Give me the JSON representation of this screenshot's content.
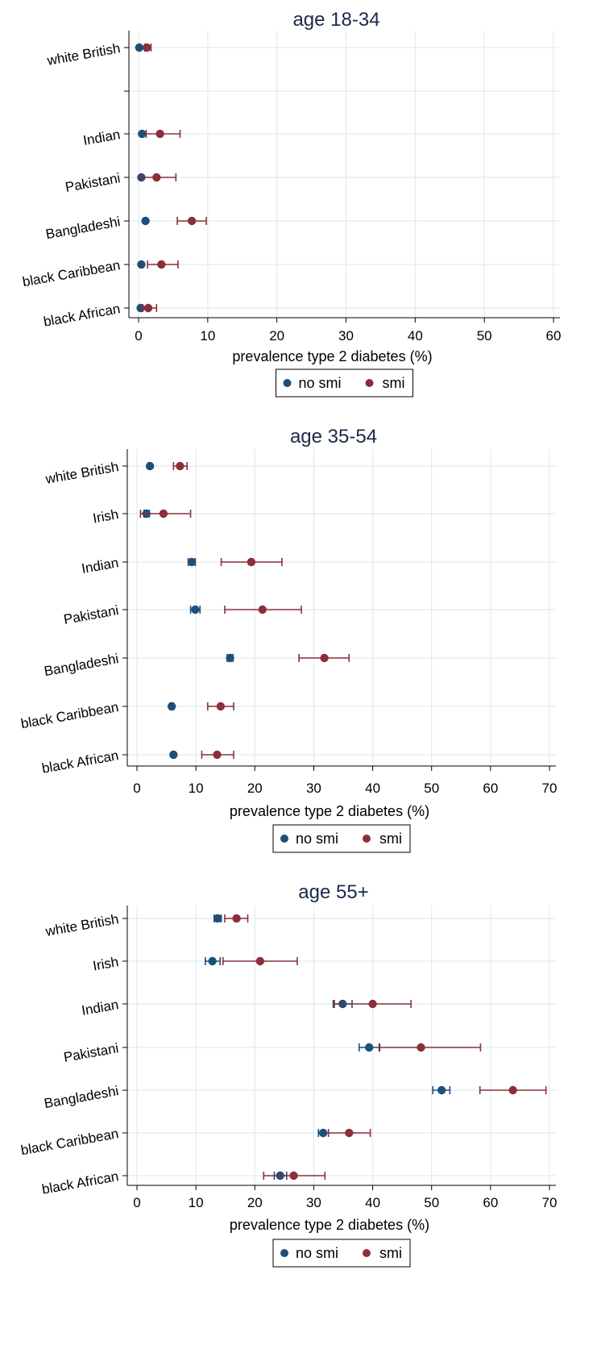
{
  "colors": {
    "no_smi": "#1f4e79",
    "smi": "#8b2f3a",
    "grid": "#e3ebef"
  },
  "chart_data": [
    {
      "type": "scatter",
      "title": "age 18-34",
      "xlabel": "prevalence type 2 diabetes (%)",
      "xlim": [
        0,
        60
      ],
      "xticks": [
        0,
        10,
        20,
        30,
        40,
        50,
        60
      ],
      "legend": [
        "no smi",
        "smi"
      ],
      "legend_position": "bottom",
      "categories": [
        "white British",
        "",
        "Indian",
        "Pakistani",
        "Bangladeshi",
        "black Caribbean",
        "black African"
      ],
      "series": [
        {
          "name": "no smi",
          "values": [
            0.1,
            null,
            0.5,
            0.4,
            1.0,
            0.4,
            0.3
          ],
          "ci_low": [
            null,
            null,
            null,
            null,
            null,
            null,
            null
          ],
          "ci_high": [
            null,
            null,
            null,
            null,
            null,
            null,
            null
          ]
        },
        {
          "name": "smi",
          "values": [
            1.2,
            null,
            3.1,
            2.6,
            7.7,
            3.3,
            1.4
          ],
          "ci_low": [
            0.9,
            null,
            1.1,
            0.5,
            5.6,
            1.3,
            0.6
          ],
          "ci_high": [
            1.8,
            null,
            6.0,
            5.4,
            9.8,
            5.7,
            2.6
          ]
        }
      ]
    },
    {
      "type": "scatter",
      "title": "age 35-54",
      "xlabel": "prevalence type 2 diabetes (%)",
      "xlim": [
        0,
        70
      ],
      "xticks": [
        0,
        10,
        20,
        30,
        40,
        50,
        60,
        70
      ],
      "legend": [
        "no smi",
        "smi"
      ],
      "legend_position": "bottom",
      "categories": [
        "white British",
        "Irish",
        "Indian",
        "Pakistani",
        "Bangladeshi",
        "black Caribbean",
        "black African"
      ],
      "series": [
        {
          "name": "no smi",
          "values": [
            2.2,
            1.6,
            9.3,
            9.9,
            15.8,
            5.9,
            6.2
          ],
          "ci_low": [
            2.0,
            1.2,
            8.7,
            9.1,
            15.3,
            5.6,
            6.0
          ],
          "ci_high": [
            2.4,
            2.1,
            9.9,
            10.7,
            16.3,
            6.2,
            6.4
          ]
        },
        {
          "name": "smi",
          "values": [
            7.3,
            4.5,
            19.4,
            21.3,
            31.8,
            14.2,
            13.6
          ],
          "ci_low": [
            6.2,
            0.6,
            14.3,
            14.9,
            27.5,
            12.0,
            11.0
          ],
          "ci_high": [
            8.5,
            9.1,
            24.6,
            27.9,
            36.0,
            16.4,
            16.4
          ]
        }
      ]
    },
    {
      "type": "scatter",
      "title": "age 55+",
      "xlabel": "prevalence type 2 diabetes (%)",
      "xlim": [
        0,
        70
      ],
      "xticks": [
        0,
        10,
        20,
        30,
        40,
        50,
        60,
        70
      ],
      "legend": [
        "no smi",
        "smi"
      ],
      "legend_position": "bottom",
      "categories": [
        "white British",
        "Irish",
        "Indian",
        "Pakistani",
        "Bangladeshi",
        "black Caribbean",
        "black African"
      ],
      "series": [
        {
          "name": "no smi",
          "values": [
            13.7,
            12.8,
            34.9,
            39.4,
            51.7,
            31.6,
            24.3
          ],
          "ci_low": [
            13.1,
            11.6,
            33.3,
            37.7,
            50.2,
            30.8,
            23.3
          ],
          "ci_high": [
            14.3,
            14.1,
            36.5,
            41.2,
            53.1,
            32.5,
            25.4
          ]
        },
        {
          "name": "smi",
          "values": [
            16.9,
            20.9,
            40.0,
            48.2,
            63.8,
            36.0,
            26.6
          ],
          "ci_low": [
            14.9,
            14.6,
            33.5,
            41.1,
            58.2,
            32.5,
            21.5
          ],
          "ci_high": [
            18.8,
            27.2,
            46.5,
            58.3,
            69.4,
            39.6,
            31.9
          ]
        }
      ]
    }
  ]
}
